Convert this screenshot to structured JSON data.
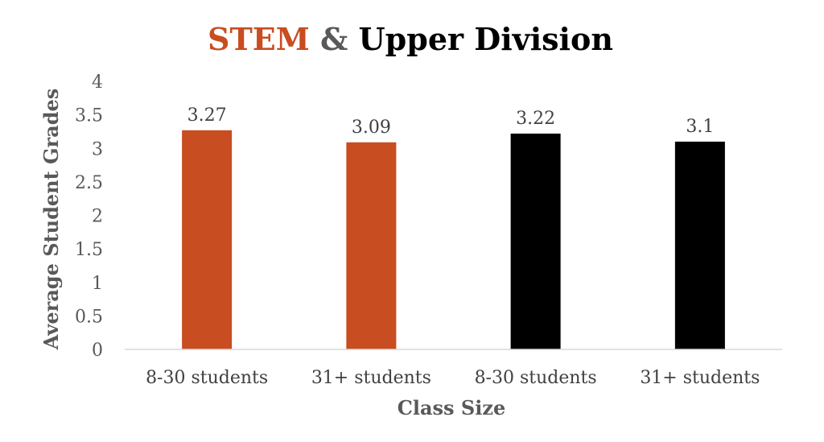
{
  "chart_data": {
    "type": "bar",
    "title_parts": [
      {
        "text": "STEM",
        "color": "#c84d20"
      },
      {
        "text": " & ",
        "color": "#595959"
      },
      {
        "text": "Upper Division",
        "color": "#000000"
      }
    ],
    "categories": [
      "8-30 students",
      "31+ students",
      "8-30 students",
      "31+ students"
    ],
    "values": [
      3.27,
      3.09,
      3.22,
      3.1
    ],
    "value_labels": [
      "3.27",
      "3.09",
      "3.22",
      "3.1"
    ],
    "bar_colors": [
      "#c84d20",
      "#c84d20",
      "#000000",
      "#000000"
    ],
    "xlabel": "Class Size",
    "ylabel": "Average Student Grades",
    "ylim": [
      0,
      4
    ],
    "yticks": [
      0,
      0.5,
      1,
      1.5,
      2,
      2.5,
      3,
      3.5,
      4
    ],
    "ytick_labels": [
      "0",
      "0.5",
      "1",
      "1.5",
      "2",
      "2.5",
      "3",
      "3.5",
      "4"
    ],
    "grid": false,
    "legend": "none"
  }
}
